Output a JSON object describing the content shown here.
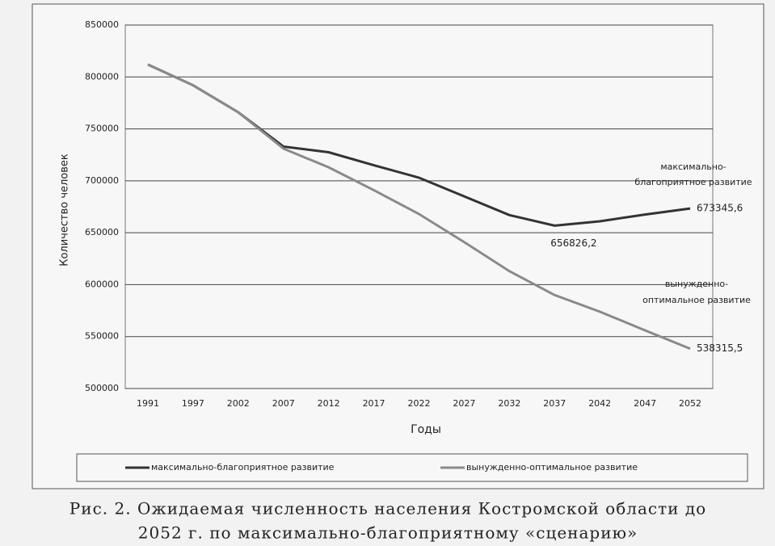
{
  "chart_data": {
    "type": "line",
    "x_label": "Годы",
    "y_label": "Количество человек",
    "categories": [
      "1991",
      "1997",
      "2002",
      "2007",
      "2012",
      "2017",
      "2022",
      "2027",
      "2032",
      "2037",
      "2042",
      "2047",
      "2052"
    ],
    "series": [
      {
        "name": "максимально-благоприятное развитие",
        "color": "#333333",
        "values": [
          812000,
          792000,
          766000,
          733000,
          727500,
          715000,
          703000,
          685000,
          667000,
          656826.2,
          661000,
          667500,
          673345.6
        ],
        "value_labels": [
          null,
          null,
          null,
          null,
          null,
          null,
          null,
          null,
          null,
          "656826,2",
          null,
          null,
          "673345,6"
        ],
        "annotation": [
          "максимально-",
          "благоприятное развитие"
        ]
      },
      {
        "name": "вынужденно-оптимальное развитие",
        "color": "#8a8a8a",
        "values": [
          812000,
          792000,
          766000,
          731000,
          713000,
          691000,
          668000,
          641000,
          613000,
          590000,
          574000,
          556000,
          538315.5
        ],
        "value_labels": [
          null,
          null,
          null,
          null,
          null,
          null,
          null,
          null,
          null,
          null,
          null,
          null,
          "538315,5"
        ],
        "annotation": [
          "вынужденно-",
          "оптимальное развитие"
        ]
      }
    ],
    "ylim": [
      500000,
      850000
    ],
    "yticks": [
      500000,
      550000,
      600000,
      650000,
      700000,
      750000,
      800000,
      850000
    ],
    "grid": true,
    "legend": "bottom",
    "caption": [
      "Рис. 2. Ожидаемая численность населения Костромской области до",
      "2052 г. по максимально-благоприятному «сценарию»"
    ]
  }
}
